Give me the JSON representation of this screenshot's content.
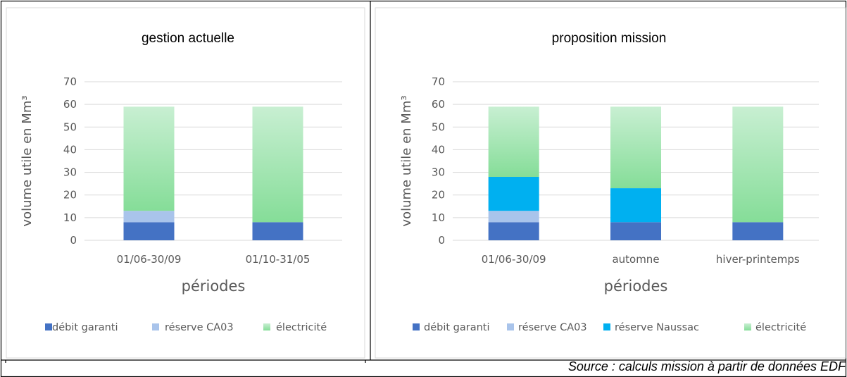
{
  "source_note": "Source : calculs mission à partir de données EDF",
  "colors": {
    "debit": "#4472C4",
    "ca03": "#A9C4EB",
    "naussac": "#00B0F0",
    "elec_top": "#C8EFD2",
    "elec_bottom": "#85DD98"
  },
  "chart_data": [
    {
      "type": "bar",
      "stacked": true,
      "title": "gestion actuelle",
      "xlabel": "périodes",
      "ylabel": "volume utile en Mm³",
      "ylim": [
        0,
        70
      ],
      "yticks": [
        "0",
        "10",
        "20",
        "30",
        "40",
        "50",
        "60",
        "70"
      ],
      "categories": [
        "01/06-30/09",
        "01/10-31/05"
      ],
      "series": [
        {
          "name": "débit garanti",
          "color_key": "debit",
          "values": [
            8,
            8
          ]
        },
        {
          "name": "réserve CA03",
          "color_key": "ca03",
          "values": [
            5,
            0
          ]
        },
        {
          "name": "électricité",
          "color_key": "elec",
          "values": [
            46,
            51
          ]
        }
      ],
      "grid": true,
      "legend": "bottom"
    },
    {
      "type": "bar",
      "stacked": true,
      "title": "proposition mission",
      "xlabel": "périodes",
      "ylabel": "volume utile en Mm³",
      "ylim": [
        0,
        70
      ],
      "yticks": [
        "0",
        "10",
        "20",
        "30",
        "40",
        "50",
        "60",
        "70"
      ],
      "categories": [
        "01/06-30/09",
        "automne",
        "hiver-printemps"
      ],
      "series": [
        {
          "name": "débit garanti",
          "color_key": "debit",
          "values": [
            8,
            8,
            8
          ]
        },
        {
          "name": "réserve CA03",
          "color_key": "ca03",
          "values": [
            5,
            0,
            0
          ]
        },
        {
          "name": "réserve Naussac",
          "color_key": "naussac",
          "values": [
            15,
            15,
            0
          ]
        },
        {
          "name": "électricité",
          "color_key": "elec",
          "values": [
            31,
            36,
            51
          ]
        }
      ],
      "grid": true,
      "legend": "bottom"
    }
  ]
}
